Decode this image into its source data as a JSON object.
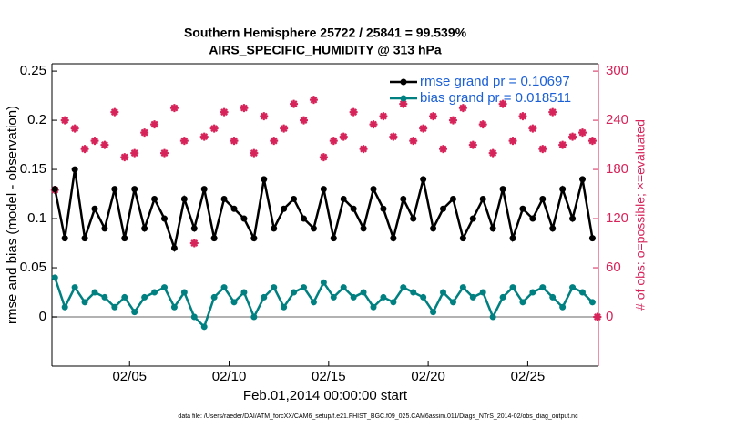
{
  "chart_data": {
    "type": "line",
    "title": "Southern Hemisphere 25722 / 25841 = 99.539%",
    "subtitle": "AIRS_SPECIFIC_HUMIDITY @ 313 hPa",
    "xlabel": "Feb.01,2014 00:00:00 start",
    "ylabel": "rmse and bias (model - observation)",
    "y2label": "# of obs: o=possible; ×=evaluated",
    "footnote": "data file: /Users/raeder/DAI/ATM_forcXX/CAM6_setup/f.e21.FHIST_BGC.f09_025.CAM6assim.011/Diags_NTrS_2014-02/obs_diag_output.nc",
    "x": [
      1.25,
      1.75,
      2.25,
      2.75,
      3.25,
      3.75,
      4.25,
      4.75,
      5.25,
      5.75,
      6.25,
      6.75,
      7.25,
      7.75,
      8.25,
      8.75,
      9.25,
      9.75,
      10.25,
      10.75,
      11.25,
      11.75,
      12.25,
      12.75,
      13.25,
      13.75,
      14.25,
      14.75,
      15.25,
      15.75,
      16.25,
      16.75,
      17.25,
      17.75,
      18.25,
      18.75,
      19.25,
      19.75,
      20.25,
      20.75,
      21.25,
      21.75,
      22.25,
      22.75,
      23.25,
      23.75,
      24.25,
      24.75,
      25.25,
      25.75,
      26.25,
      26.75,
      27.25,
      27.75,
      28.25,
      28.5
    ],
    "xlim": [
      1.1,
      28.55
    ],
    "xticks": [
      {
        "value": 5,
        "label": "02/05"
      },
      {
        "value": 10,
        "label": "02/10"
      },
      {
        "value": 15,
        "label": "02/15"
      },
      {
        "value": 20,
        "label": "02/20"
      },
      {
        "value": 25,
        "label": "02/25"
      }
    ],
    "ylim": [
      -0.05,
      0.2575
    ],
    "yticks": [
      0,
      0.05,
      0.1,
      0.15,
      0.2,
      0.25
    ],
    "y2lim": [
      -60,
      309
    ],
    "y2ticks": [
      0,
      60,
      120,
      180,
      240,
      300
    ],
    "legend": "upper right",
    "series": [
      {
        "name": "rmse grand pr = 0.10697",
        "color": "#000000",
        "marker": "circle",
        "line": true,
        "legend": true,
        "values": [
          0.13,
          0.08,
          0.15,
          0.08,
          0.11,
          0.09,
          0.13,
          0.08,
          0.13,
          0.09,
          0.12,
          0.1,
          0.07,
          0.12,
          0.09,
          0.13,
          0.08,
          0.12,
          0.11,
          0.1,
          0.08,
          0.14,
          0.09,
          0.11,
          0.12,
          0.1,
          0.09,
          0.13,
          0.08,
          0.12,
          0.11,
          0.09,
          0.13,
          0.11,
          0.08,
          0.12,
          0.1,
          0.14,
          0.09,
          0.11,
          0.12,
          0.08,
          0.1,
          0.12,
          0.09,
          0.13,
          0.08,
          0.11,
          0.1,
          0.12,
          0.09,
          0.13,
          0.1,
          0.14,
          0.08,
          null
        ]
      },
      {
        "name": "bias grand pr = 0.018511",
        "color": "#008080",
        "marker": "circle",
        "line": true,
        "legend": true,
        "values": [
          0.04,
          0.01,
          0.03,
          0.015,
          0.025,
          0.02,
          0.01,
          0.02,
          0.005,
          0.02,
          0.025,
          0.03,
          0.01,
          0.025,
          0.0,
          -0.01,
          0.02,
          0.03,
          0.015,
          0.025,
          0.0,
          0.02,
          0.03,
          0.01,
          0.025,
          0.03,
          0.015,
          0.035,
          0.02,
          0.03,
          0.02,
          0.025,
          0.01,
          0.02,
          0.015,
          0.03,
          0.025,
          0.02,
          0.005,
          0.025,
          0.015,
          0.03,
          0.02,
          0.025,
          0.0,
          0.02,
          0.03,
          0.015,
          0.025,
          0.03,
          0.02,
          0.01,
          0.03,
          0.025,
          0.015,
          null
        ]
      },
      {
        "name": "possible",
        "color": "#d6245a",
        "marker": "circle",
        "line": false,
        "legend": false,
        "axis": "y2",
        "values": [
          155,
          240,
          230,
          205,
          215,
          210,
          250,
          195,
          200,
          225,
          235,
          200,
          255,
          215,
          90,
          220,
          230,
          250,
          215,
          255,
          200,
          245,
          215,
          230,
          260,
          240,
          265,
          195,
          215,
          220,
          250,
          205,
          235,
          245,
          220,
          260,
          215,
          230,
          245,
          205,
          240,
          255,
          210,
          235,
          200,
          260,
          215,
          245,
          230,
          205,
          250,
          210,
          220,
          225,
          215,
          0
        ]
      },
      {
        "name": "evaluated",
        "color": "#d6245a",
        "marker": "star",
        "line": false,
        "legend": false,
        "axis": "y2",
        "values": [
          155,
          240,
          230,
          205,
          215,
          210,
          250,
          195,
          200,
          225,
          235,
          200,
          255,
          215,
          90,
          220,
          230,
          250,
          215,
          255,
          200,
          245,
          215,
          230,
          260,
          240,
          265,
          195,
          215,
          220,
          250,
          205,
          235,
          245,
          220,
          260,
          215,
          230,
          245,
          205,
          240,
          255,
          210,
          235,
          200,
          260,
          215,
          245,
          230,
          205,
          250,
          210,
          220,
          225,
          215,
          0
        ]
      }
    ],
    "zero_line_color": "#999999",
    "axis_color": "#000000",
    "y2_color": "#d6245a",
    "legend_text_color": "#1a5fd6"
  }
}
